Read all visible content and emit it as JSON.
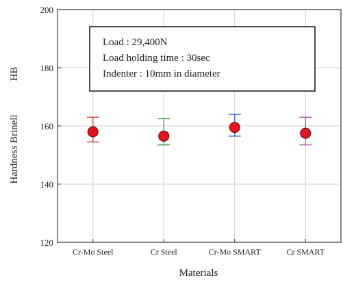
{
  "chart_data": {
    "type": "scatter",
    "categories": [
      "Cr-Mo Steel",
      "Cr Steel",
      "Cr-Mo SMART",
      "Cr SMART"
    ],
    "values": [
      158,
      156.5,
      159.5,
      157.5
    ],
    "error_low": [
      154.5,
      153.5,
      156.5,
      153.5
    ],
    "error_high": [
      163,
      162.5,
      164,
      163
    ],
    "error_bar_colors": [
      "#d44a4a",
      "#4a9a4a",
      "#4a6fd0",
      "#b060b0"
    ],
    "marker_color": "#e8121c",
    "ylim": [
      120,
      200
    ],
    "yticks": [
      "120",
      "140",
      "160",
      "180",
      "200"
    ],
    "xlabel": "Materials",
    "ylabel": "Hardness Brinell",
    "ylabel_unit": "HB",
    "grid": true,
    "annotation_lines": [
      "Load : 29,400N",
      "Load holding time : 30sec",
      "Indenter : 10mm in diameter"
    ]
  }
}
